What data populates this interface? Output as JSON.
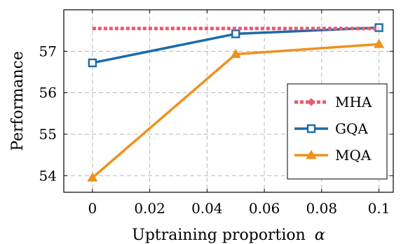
{
  "chart_data": {
    "type": "line",
    "xlabel": "Uptraining proportion",
    "xlabel_symbol": "α",
    "ylabel": "Performance",
    "xlim": [
      -0.01,
      0.105
    ],
    "ylim": [
      53.6,
      58.0
    ],
    "x_ticks": [
      0,
      0.02,
      0.04,
      0.06,
      0.08,
      0.1
    ],
    "x_tick_labels": [
      "0",
      "0.02",
      "0.04",
      "0.06",
      "0.08",
      "0.1"
    ],
    "y_ticks": [
      54,
      55,
      56,
      57
    ],
    "y_tick_labels": [
      "54",
      "55",
      "56",
      "57"
    ],
    "grid": true,
    "legend_position": "center-right",
    "series": [
      {
        "name": "MHA",
        "color": "#e95b6f",
        "style": "dotted",
        "marker": "diamond",
        "x": [
          0,
          0.1
        ],
        "y": [
          57.55,
          57.55
        ]
      },
      {
        "name": "GQA",
        "color": "#1b6aa8",
        "style": "solid",
        "marker": "square",
        "x": [
          0,
          0.05,
          0.1
        ],
        "y": [
          56.72,
          57.42,
          57.57
        ]
      },
      {
        "name": "MQA",
        "color": "#f0901d",
        "style": "solid",
        "marker": "triangle",
        "x": [
          0,
          0.05,
          0.1
        ],
        "y": [
          53.95,
          56.93,
          57.17
        ]
      }
    ]
  }
}
